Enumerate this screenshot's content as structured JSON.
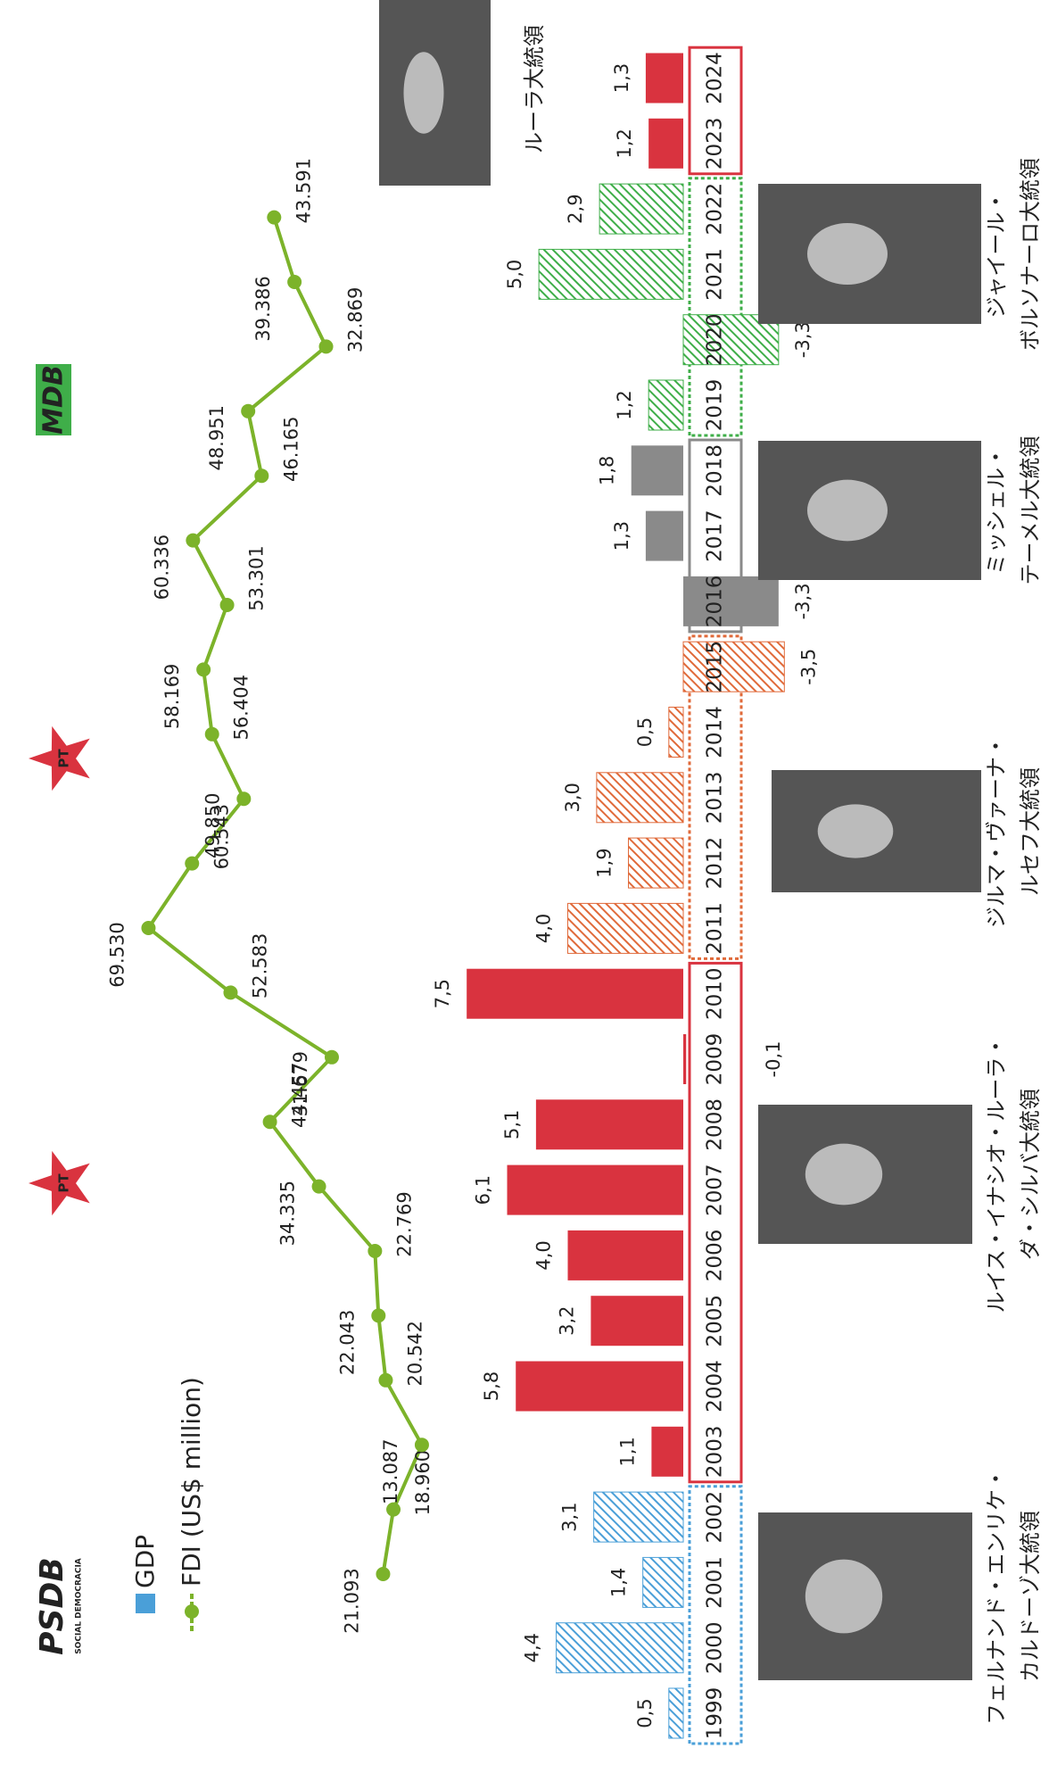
{
  "chart_data": {
    "type": "bar",
    "legend": [
      "GDP",
      "FDI (US$ million)"
    ],
    "categories": [
      "1999",
      "2000",
      "2001",
      "2002",
      "2003",
      "2004",
      "2005",
      "2006",
      "2007",
      "2008",
      "2009",
      "2010",
      "2011",
      "2012",
      "2013",
      "2014",
      "2015",
      "2016",
      "2017",
      "2018",
      "2019",
      "2020",
      "2021",
      "2022",
      "2023",
      "2024"
    ],
    "values": [
      0.5,
      4.4,
      1.4,
      3.1,
      1.1,
      5.8,
      3.2,
      4.0,
      6.1,
      5.1,
      -0.1,
      7.5,
      4.0,
      1.9,
      3.0,
      0.5,
      -3.5,
      -3.3,
      1.3,
      1.8,
      1.2,
      -3.3,
      5.0,
      2.9,
      1.2,
      1.3
    ],
    "value_labels": [
      "0,5",
      "4,4",
      "1,4",
      "3,1",
      "1,1",
      "5,8",
      "3,2",
      "4,0",
      "6,1",
      "5,1",
      "-0,1",
      "7,5",
      "4,0",
      "1,9",
      "3,0",
      "0,5",
      "-3,5",
      "-3,3",
      "1,3",
      "1,8",
      "1,2",
      "-3,3",
      "5,0",
      "2,9",
      "1,2",
      "1,3"
    ],
    "bar_colors": [
      "#4a9fd8",
      "#4a9fd8",
      "#4a9fd8",
      "#4a9fd8",
      "#d9333f",
      "#d9333f",
      "#d9333f",
      "#d9333f",
      "#d9333f",
      "#d9333f",
      "#d9333f",
      "#d9333f",
      "#e06a3a",
      "#e06a3a",
      "#e06a3a",
      "#e06a3a",
      "#e06a3a",
      "#8a8a8a",
      "#8a8a8a",
      "#8a8a8a",
      "#3fae49",
      "#3fae49",
      "#3fae49",
      "#3fae49",
      "#d9333f",
      "#d9333f"
    ],
    "hatched": [
      true,
      true,
      true,
      true,
      false,
      false,
      false,
      false,
      false,
      false,
      false,
      false,
      true,
      true,
      true,
      true,
      true,
      false,
      false,
      false,
      true,
      true,
      true,
      true,
      false,
      false
    ],
    "ylim": [
      -4,
      8
    ],
    "fdi": {
      "color": "#7cb32a",
      "values": [
        21093,
        18960,
        13087,
        20542,
        22043,
        22769,
        34335,
        44457,
        31679,
        52583,
        69530,
        60543,
        49850,
        56404,
        58169,
        53301,
        60336,
        46165,
        48951,
        32869,
        39386,
        43591
      ],
      "value_labels": [
        "21.093",
        "18.960",
        "13.087",
        "20.542",
        "22.043",
        "22.769",
        "34.335",
        "44.457",
        "31.679",
        "52.583",
        "69.530",
        "60.543",
        "49.850",
        "56.404",
        "58.169",
        "53.301",
        "60.336",
        "46.165",
        "48.951",
        "32.869",
        "39.386",
        "43.591"
      ],
      "y2lim": [
        0,
        100000
      ]
    },
    "logos": [
      "PSDB",
      "SOCIAL DEMOCRACIA",
      "PT",
      "PT",
      "MDB"
    ],
    "presidents": [
      {
        "lines": [
          "フェルナンド・エンリケ・",
          "カルドーゾ大統領"
        ]
      },
      {
        "lines": [
          "ルイス・イナシオ・ルーラ・",
          "ダ・シルバ大統領"
        ]
      },
      {
        "lines": [
          "ジルマ・ヴァーナ・",
          "ルセフ大統領"
        ]
      },
      {
        "lines": [
          "ミッシェル・",
          "テーメル大統領"
        ]
      },
      {
        "lines": [
          "ジャイール・",
          "ボルソナーロ大統領"
        ]
      },
      {
        "lines": [
          "ルーラ大統領"
        ]
      }
    ]
  }
}
